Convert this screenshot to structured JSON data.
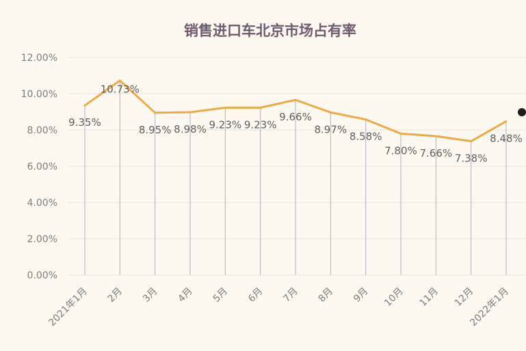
{
  "chart_data": {
    "type": "line",
    "title": "销售进口车北京市场占有率",
    "xlabel": "",
    "ylabel": "",
    "categories": [
      "2021年1月",
      "2月",
      "3月",
      "4月",
      "5月",
      "6月",
      "7月",
      "8月",
      "9月",
      "10月",
      "11月",
      "12月",
      "2022年1月"
    ],
    "series": [
      {
        "values": [
          9.35,
          10.73,
          8.95,
          8.98,
          9.23,
          9.23,
          9.66,
          8.97,
          8.58,
          7.8,
          7.66,
          7.38,
          8.48
        ],
        "labels": [
          "9.35%",
          "10.73%",
          "8.95%",
          "8.98%",
          "9.23%",
          "9.23%",
          "9.66%",
          "8.97%",
          "8.58%",
          "7.80%",
          "7.66%",
          "7.38%",
          "8.48%"
        ],
        "color": "#eeaa45"
      }
    ],
    "ylim": [
      0,
      12
    ],
    "yticks": [
      0,
      2,
      4,
      6,
      8,
      10,
      12
    ],
    "ytick_labels": [
      "0.00%",
      "2.00%",
      "4.00%",
      "6.00%",
      "8.00%",
      "10.00%",
      "12.00%"
    ],
    "grid": true,
    "drop_lines": true,
    "legend": "none"
  },
  "colors": {
    "background": "#fdf9f1",
    "title": "#6f5a6f",
    "line": "#eeaa45"
  }
}
